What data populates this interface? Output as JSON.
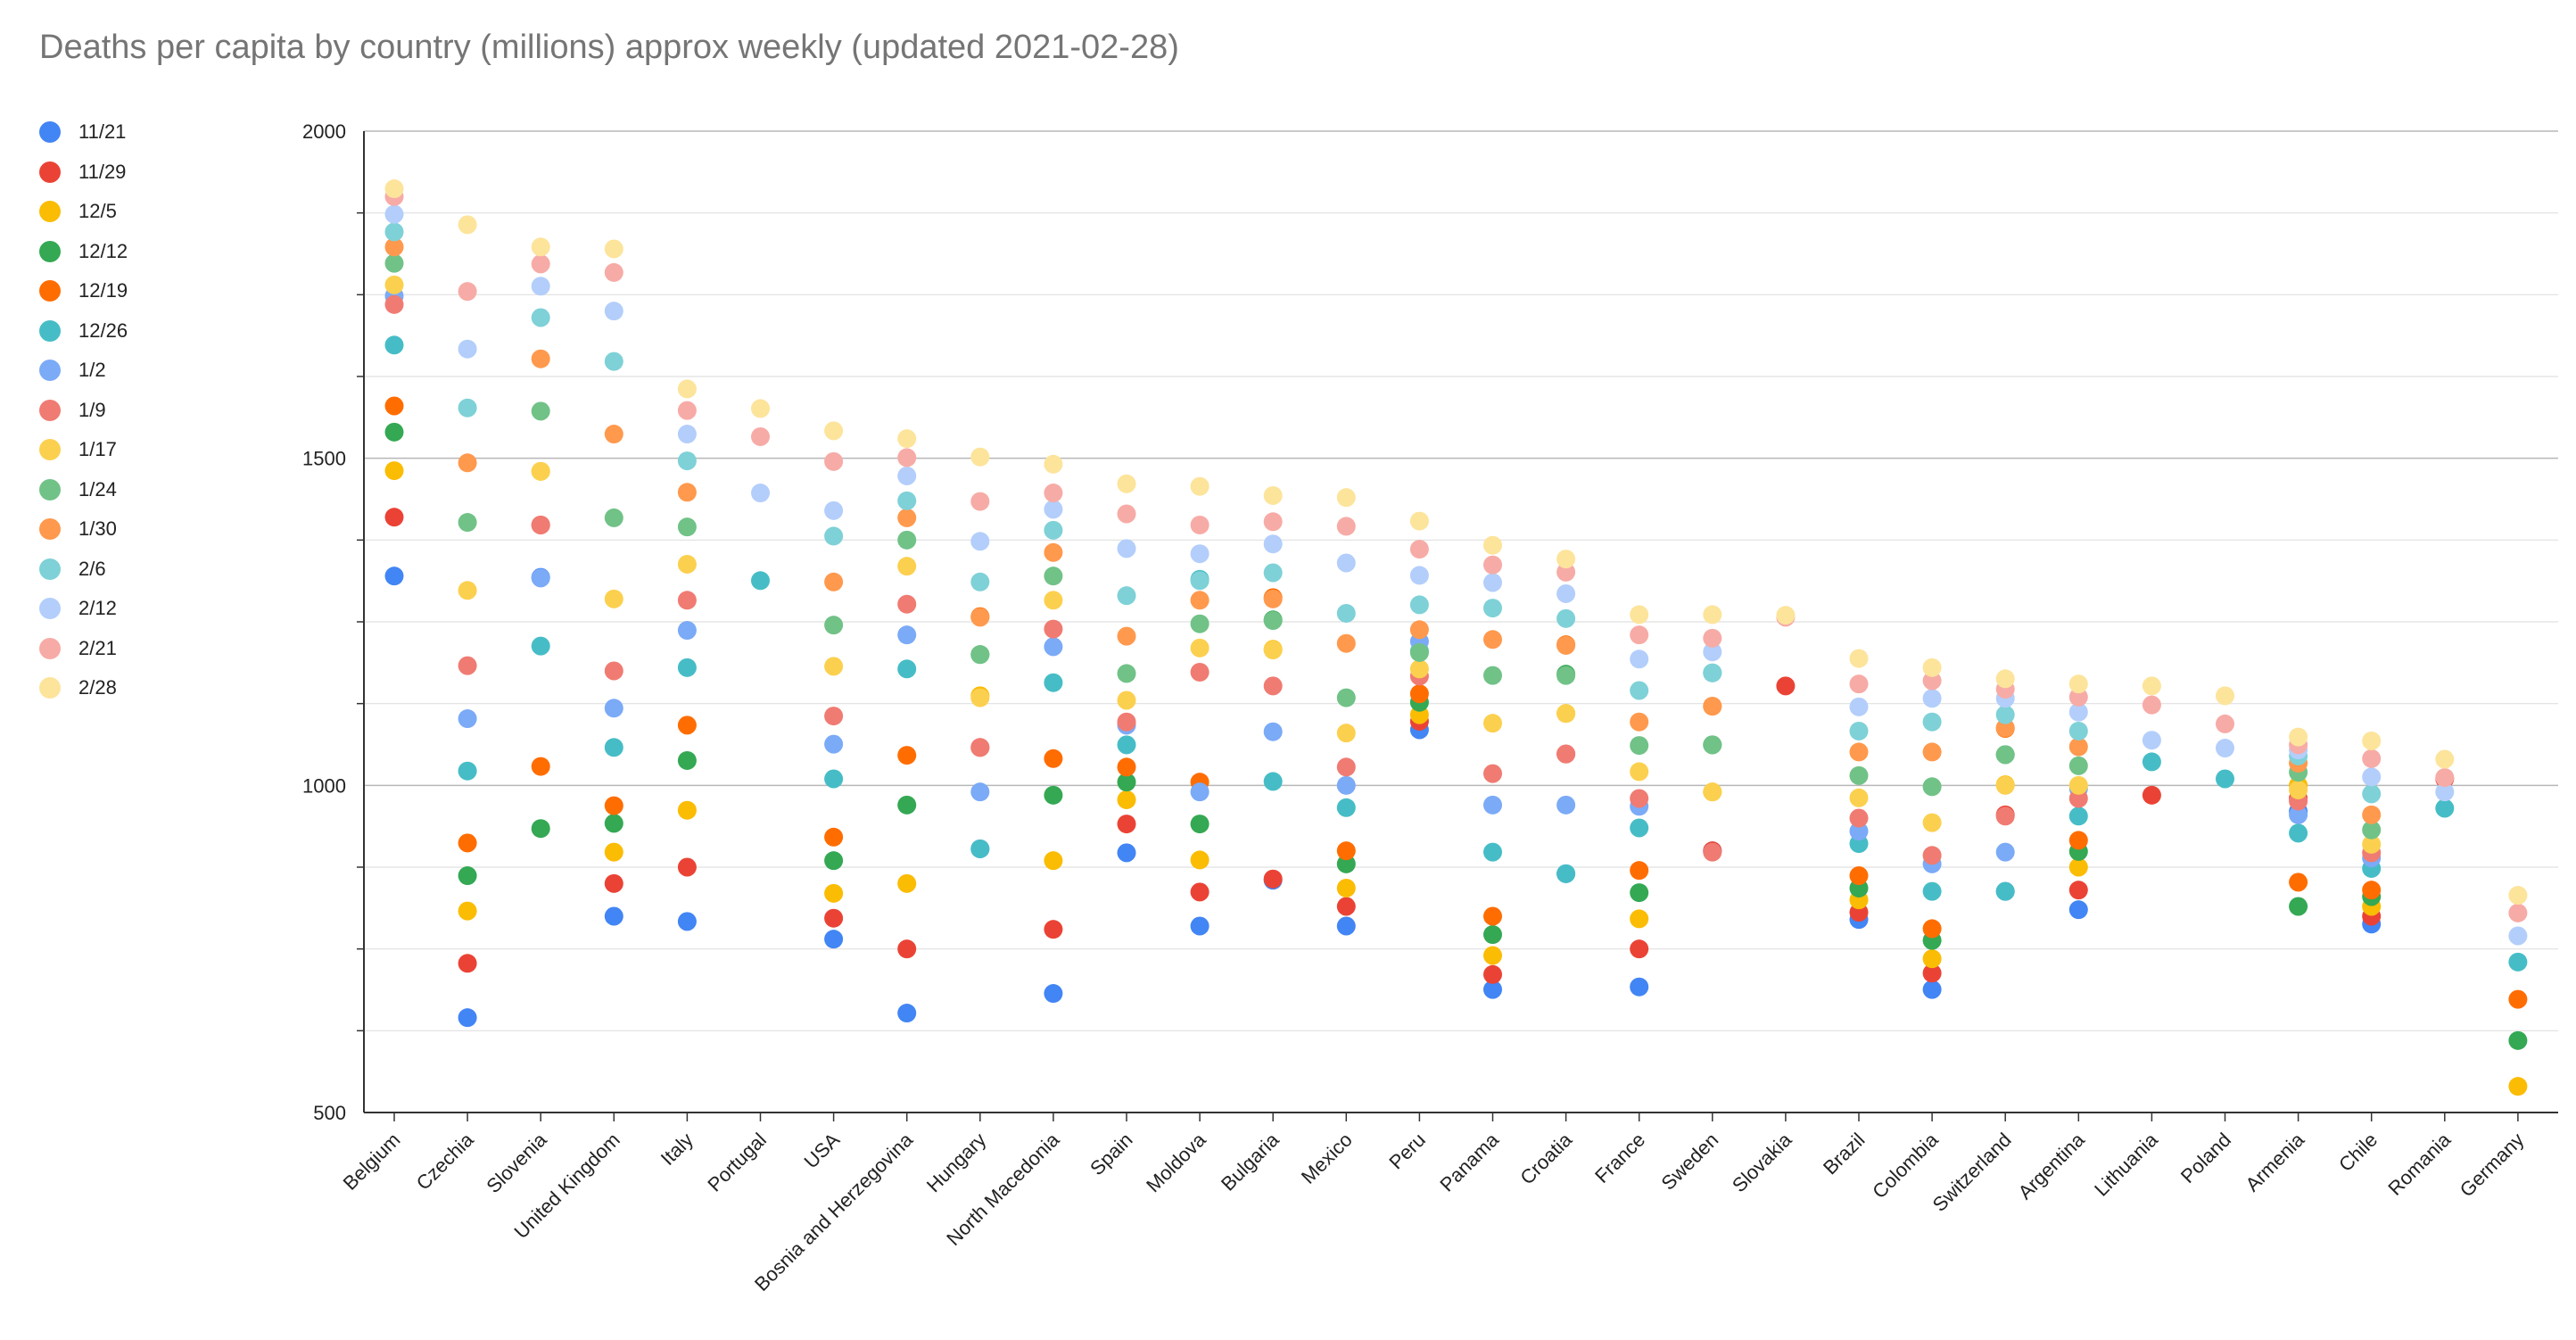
{
  "chart_data": {
    "type": "scatter",
    "title": "Deaths per capita by country (millions) approx weekly (updated 2021-02-28)",
    "xlabel": "",
    "ylabel": "",
    "ylim": [
      500,
      2000
    ],
    "yticks": [
      500,
      1000,
      1500,
      2000
    ],
    "grid": true,
    "legend_position": "left",
    "categories": [
      "Belgium",
      "Czechia",
      "Slovenia",
      "United Kingdom",
      "Italy",
      "Portugal",
      "USA",
      "Bosnia and Herzegovina",
      "Hungary",
      "North Macedonia",
      "Spain",
      "Moldova",
      "Bulgaria",
      "Mexico",
      "Peru",
      "Panama",
      "Croatia",
      "France",
      "Sweden",
      "Slovakia",
      "Brazil",
      "Colombia",
      "Switzerland",
      "Argentina",
      "Lithuania",
      "Poland",
      "Armenia",
      "Chile",
      "Romania",
      "Germany"
    ],
    "series": [
      {
        "name": "11/21",
        "color": "#4285f4",
        "values": [
          1320,
          645,
          1318,
          800,
          792,
          null,
          765,
          652,
          903,
          682,
          897,
          785,
          855,
          785,
          1085,
          688,
          865,
          692,
          900,
          null,
          795,
          688,
          838,
          810,
          null,
          null,
          960,
          788,
          null,
          null
        ]
      },
      {
        "name": "11/29",
        "color": "#ea4335",
        "values": [
          1410,
          728,
          1398,
          850,
          875,
          null,
          797,
          750,
          1058,
          780,
          941,
          837,
          857,
          815,
          1098,
          711,
          1048,
          750,
          900,
          1152,
          806,
          713,
          955,
          840,
          985,
          null,
          980,
          800,
          1010,
          null
        ]
      },
      {
        "name": "12/5",
        "color": "#fbbc04",
        "values": [
          1481,
          808,
          1480,
          898,
          962,
          null,
          835,
          850,
          1137,
          885,
          978,
          886,
          1208,
          843,
          1108,
          740,
          1110,
          796,
          990,
          null,
          825,
          735,
          1001,
          875,
          null,
          null,
          1000,
          815,
          null,
          540
        ]
      },
      {
        "name": "12/12",
        "color": "#34a853",
        "values": [
          1540,
          862,
          934,
          942,
          1038,
          null,
          885,
          970,
          1200,
          985,
          1005,
          941,
          1253,
          880,
          1127,
          772,
          1170,
          836,
          1062,
          null,
          843,
          763,
          1047,
          899,
          null,
          null,
          815,
          830,
          null,
          610
        ]
      },
      {
        "name": "12/19",
        "color": "#ff6d01",
        "values": [
          1580,
          912,
          1029,
          969,
          1092,
          null,
          921,
          1046,
          1258,
          1041,
          1028,
          1005,
          1287,
          900,
          1140,
          800,
          1215,
          870,
          1121,
          null,
          862,
          781,
          1087,
          916,
          null,
          null,
          852,
          840,
          null,
          673
        ]
      },
      {
        "name": "12/26",
        "color": "#46bdc6",
        "values": [
          1673,
          1022,
          1213,
          1058,
          1180,
          1313,
          1010,
          1178,
          903,
          1157,
          1062,
          1315,
          1006,
          966,
          1205,
          898,
          865,
          935,
          1172,
          null,
          911,
          838,
          838,
          953,
          1036,
          1010,
          927,
          873,
          965,
          730
        ]
      },
      {
        "name": "1/2",
        "color": "#7baaf7",
        "values": [
          1748,
          1102,
          1317,
          1118,
          1237,
          null,
          1063,
          1230,
          990,
          1212,
          1092,
          990,
          1082,
          1000,
          1220,
          970,
          970,
          968,
          null,
          null,
          930,
          880,
          898,
          995,
          null,
          null,
          955,
          889,
          null,
          null
        ]
      },
      {
        "name": "1/9",
        "color": "#f07b72",
        "values": [
          1735,
          1183,
          1398,
          1175,
          1283,
          null,
          1106,
          1277,
          1058,
          1239,
          1097,
          1173,
          1152,
          1028,
          1167,
          1018,
          1048,
          980,
          898,
          null,
          950,
          893,
          953,
          980,
          null,
          null,
          976,
          897,
          null,
          null
        ]
      },
      {
        "name": "1/17",
        "color": "#fcd04f",
        "values": [
          1765,
          1298,
          1480,
          1285,
          1338,
          null,
          1182,
          1335,
          1134,
          1283,
          1130,
          1210,
          1207,
          1080,
          1178,
          1095,
          1110,
          1021,
          990,
          null,
          981,
          943,
          1000,
          1000,
          null,
          null,
          993,
          910,
          null,
          null
        ]
      },
      {
        "name": "1/24",
        "color": "#71c287",
        "values": [
          1798,
          1402,
          1572,
          1409,
          1395,
          null,
          1245,
          1375,
          1200,
          1320,
          1171,
          1247,
          1252,
          1134,
          1203,
          1168,
          1168,
          1061,
          1062,
          null,
          1015,
          998,
          1047,
          1030,
          null,
          null,
          1020,
          932,
          null,
          null
        ]
      },
      {
        "name": "1/30",
        "color": "#ff994d",
        "values": [
          1823,
          1493,
          1652,
          1537,
          1448,
          null,
          1311,
          1409,
          1257,
          1356,
          1228,
          1283,
          1285,
          1217,
          1238,
          1223,
          1214,
          1097,
          1121,
          null,
          1051,
          1051,
          1088,
          1059,
          null,
          null,
          1034,
          955,
          null,
          null
        ]
      },
      {
        "name": "2/6",
        "color": "#7ed1d7",
        "values": [
          1846,
          1577,
          1715,
          1648,
          1496,
          null,
          1381,
          1435,
          1311,
          1390,
          1290,
          1313,
          1325,
          1263,
          1276,
          1271,
          1255,
          1145,
          1172,
          null,
          1083,
          1097,
          1108,
          1083,
          null,
          null,
          1045,
          987,
          null,
          null
        ]
      },
      {
        "name": "2/12",
        "color": "#b3cefb",
        "values": [
          1873,
          1667,
          1763,
          1725,
          1537,
          1447,
          1420,
          1473,
          1373,
          1422,
          1362,
          1354,
          1369,
          1340,
          1321,
          1310,
          1293,
          1193,
          1204,
          null,
          1120,
          1133,
          1133,
          1112,
          1069,
          1057,
          1054,
          1013,
          990,
          770
        ]
      },
      {
        "name": "2/21",
        "color": "#f7aba6",
        "values": [
          1900,
          1755,
          1797,
          1784,
          1573,
          1533,
          1495,
          1501,
          1434,
          1447,
          1415,
          1398,
          1403,
          1396,
          1361,
          1337,
          1326,
          1230,
          1225,
          1257,
          1155,
          1160,
          1147,
          1135,
          1123,
          1094,
          1062,
          1041,
          1012,
          805
        ]
      },
      {
        "name": "2/28",
        "color": "#fde49b",
        "values": [
          1912,
          1857,
          1823,
          1820,
          1606,
          1576,
          1542,
          1530,
          1502,
          1491,
          1461,
          1457,
          1443,
          1440,
          1404,
          1367,
          1346,
          1261,
          1261,
          1260,
          1194,
          1180,
          1163,
          1155,
          1152,
          1137,
          1074,
          1068,
          1040,
          832
        ]
      }
    ]
  }
}
